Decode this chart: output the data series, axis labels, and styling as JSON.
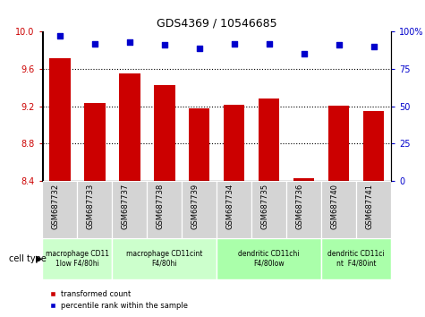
{
  "title": "GDS4369 / 10546685",
  "samples": [
    "GSM687732",
    "GSM687733",
    "GSM687737",
    "GSM687738",
    "GSM687739",
    "GSM687734",
    "GSM687735",
    "GSM687736",
    "GSM687740",
    "GSM687741"
  ],
  "bar_values": [
    9.72,
    9.23,
    9.55,
    9.43,
    9.18,
    9.22,
    9.28,
    8.43,
    9.21,
    9.15
  ],
  "scatter_values": [
    97,
    92,
    93,
    91,
    89,
    92,
    92,
    85,
    91,
    90
  ],
  "ylim_left": [
    8.4,
    10.0
  ],
  "ylim_right": [
    0,
    100
  ],
  "yticks_left": [
    8.4,
    8.8,
    9.2,
    9.6,
    10.0
  ],
  "yticks_right": [
    0,
    25,
    50,
    75,
    100
  ],
  "bar_color": "#cc0000",
  "scatter_color": "#0000cc",
  "bar_width": 0.6,
  "dotted_lines": [
    8.8,
    9.2,
    9.6
  ],
  "cell_types": [
    {
      "label": "macrophage CD11\n1low F4/80hi",
      "start": 0,
      "end": 2,
      "color": "#ccffcc"
    },
    {
      "label": "macrophage CD11cint\nF4/80hi",
      "start": 2,
      "end": 5,
      "color": "#ccffcc"
    },
    {
      "label": "dendritic CD11chi\nF4/80low",
      "start": 5,
      "end": 8,
      "color": "#aaffaa"
    },
    {
      "label": "dendritic CD11ci\nnt  F4/80int",
      "start": 8,
      "end": 10,
      "color": "#aaffaa"
    }
  ],
  "legend_bar_label": "transformed count",
  "legend_scatter_label": "percentile rank within the sample",
  "cell_type_label": "cell type",
  "sample_bg_color": "#d4d4d4",
  "sample_label_fontsize": 6,
  "title_fontsize": 9
}
